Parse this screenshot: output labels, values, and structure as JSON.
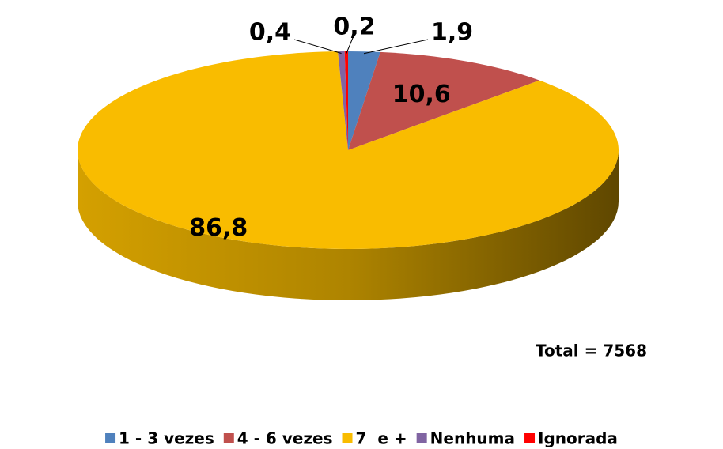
{
  "chart_data": {
    "type": "pie",
    "categories": [
      "1 - 3 vezes",
      "4 - 6 vezes",
      "7  e +",
      "Nenhuma",
      "Ignorada"
    ],
    "values": [
      1.9,
      10.6,
      86.8,
      0.4,
      0.2
    ],
    "value_labels": [
      "1,9",
      "10,6",
      "86,8",
      "0,4",
      "0,2"
    ],
    "colors": [
      "#4f81bd",
      "#c0504d",
      "#f9bc00",
      "#8064a2",
      "#ff0000"
    ],
    "annotation": "Total = 7568",
    "legend": "bottom"
  }
}
